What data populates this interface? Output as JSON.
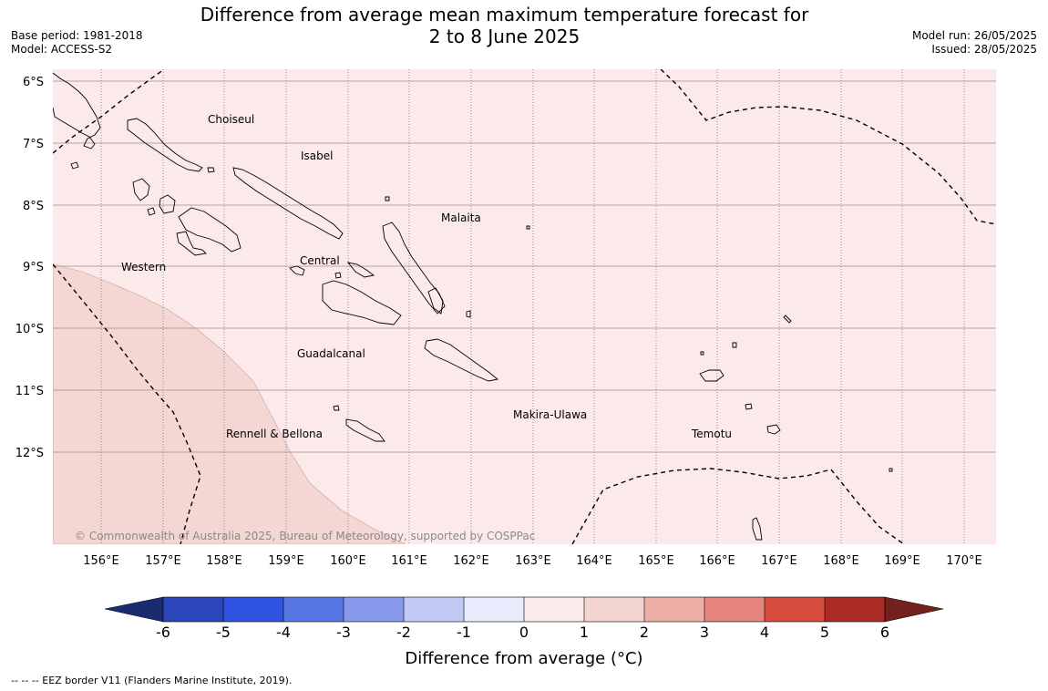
{
  "title": {
    "line1": "Difference from average mean maximum temperature forecast for",
    "line2": "2 to 8 June 2025"
  },
  "meta": {
    "base_period": "Base period: 1981-2018",
    "model": "Model: ACCESS-S2",
    "model_run": "Model run: 26/05/2025",
    "issued": "Issued: 28/05/2025"
  },
  "map": {
    "lat_labels": [
      "6°S",
      "7°S",
      "8°S",
      "9°S",
      "10°S",
      "11°S",
      "12°S"
    ],
    "lon_labels": [
      "156°E",
      "157°E",
      "158°E",
      "159°E",
      "160°E",
      "161°E",
      "162°E",
      "163°E",
      "164°E",
      "165°E",
      "166°E",
      "167°E",
      "168°E",
      "169°E",
      "170°E"
    ],
    "regions": {
      "choiseul": "Choiseul",
      "isabel": "Isabel",
      "malaita": "Malaita",
      "western": "Western",
      "central": "Central",
      "guadalcanal": "Guadalcanal",
      "rennell": "Rennell & Bellona",
      "makira": "Makira-Ulawa",
      "temotu": "Temotu"
    },
    "copyright": "© Commonwealth of Australia 2025, Bureau of Meteorology, supported by COSPPac",
    "colors": {
      "zone_0_1": "#fbeae9",
      "zone_1_2": "#f4d6d3",
      "land_outline": "#000000",
      "grid": "#555555"
    }
  },
  "colorbar": {
    "ticks": [
      "-6",
      "-5",
      "-4",
      "-3",
      "-2",
      "-1",
      "0",
      "1",
      "2",
      "3",
      "4",
      "5",
      "6"
    ],
    "colors": [
      "#1b2b70",
      "#2a46b8",
      "#2f53e0",
      "#5677e4",
      "#8799ea",
      "#c2caf4",
      "#e8ebfc",
      "#fbeaea",
      "#f4d4d1",
      "#eeafa8",
      "#e6857d",
      "#d84b3f",
      "#ac2a24",
      "#72211d"
    ],
    "label": "Difference from average (°C)"
  },
  "footnote": "--  --  -- EEZ border V11 (Flanders Marine Institute, 2019)."
}
